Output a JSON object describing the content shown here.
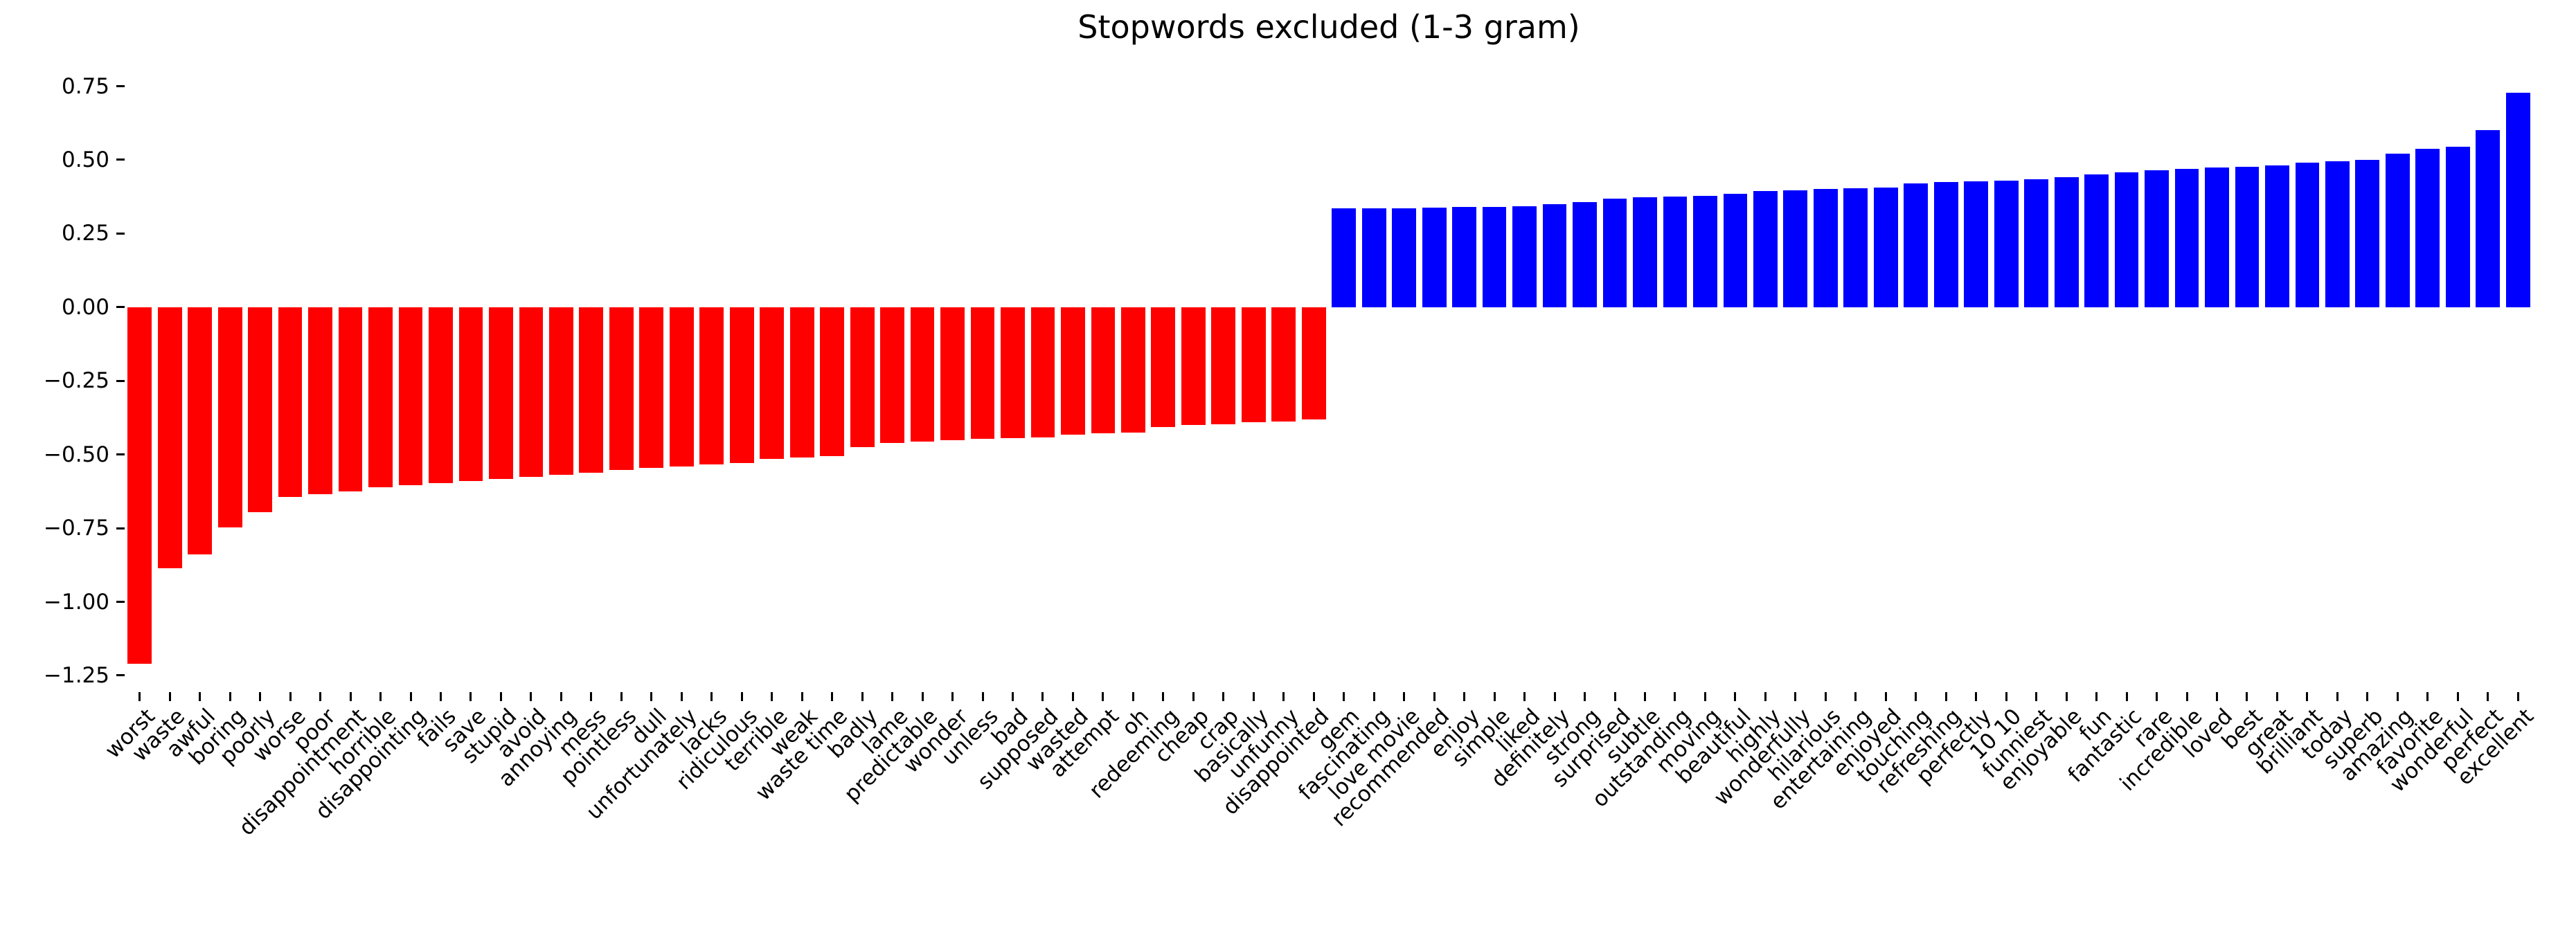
{
  "chart_data": {
    "type": "bar",
    "title": "Stopwords excluded (1-3 gram)",
    "xlabel": "",
    "ylabel": "",
    "ylim": [
      -1.31,
      0.85
    ],
    "grid": false,
    "legend": "none",
    "xlabel_rotation_deg": 45,
    "bar_color_negative": "#ff0000",
    "bar_color_positive": "#0000ff",
    "yticks": [
      {
        "label": "0.75",
        "value": 0.75
      },
      {
        "label": "0.50",
        "value": 0.5
      },
      {
        "label": "0.25",
        "value": 0.25
      },
      {
        "label": "0.00",
        "value": 0.0
      },
      {
        "label": "−0.25",
        "value": -0.25
      },
      {
        "label": "−0.50",
        "value": -0.5
      },
      {
        "label": "−0.75",
        "value": -0.75
      },
      {
        "label": "−1.00",
        "value": -1.0
      },
      {
        "label": "−1.25",
        "value": -1.25
      }
    ],
    "categories": [
      "worst",
      "waste",
      "awful",
      "boring",
      "poorly",
      "worse",
      "poor",
      "disappointment",
      "horrible",
      "disappointing",
      "fails",
      "save",
      "stupid",
      "avoid",
      "annoying",
      "mess",
      "pointless",
      "dull",
      "unfortunately",
      "lacks",
      "ridiculous",
      "terrible",
      "weak",
      "waste time",
      "badly",
      "lame",
      "predictable",
      "wonder",
      "unless",
      "bad",
      "supposed",
      "wasted",
      "attempt",
      "oh",
      "redeeming",
      "cheap",
      "crap",
      "basically",
      "unfunny",
      "disappointed",
      "gem",
      "fascinating",
      "love movie",
      "recommended",
      "enjoy",
      "simple",
      "liked",
      "definitely",
      "strong",
      "surprised",
      "subtle",
      "outstanding",
      "moving",
      "beautiful",
      "highly",
      "wonderfully",
      "hilarious",
      "entertaining",
      "enjoyed",
      "touching",
      "refreshing",
      "perfectly",
      "10 10",
      "funniest",
      "enjoyable",
      "fun",
      "fantastic",
      "rare",
      "incredible",
      "loved",
      "best",
      "great",
      "brilliant",
      "today",
      "superb",
      "amazing",
      "favorite",
      "wonderful",
      "perfect",
      "excellent"
    ],
    "values": [
      -1.21,
      -0.886,
      -0.84,
      -0.748,
      -0.696,
      -0.644,
      -0.635,
      -0.626,
      -0.612,
      -0.604,
      -0.597,
      -0.59,
      -0.583,
      -0.576,
      -0.569,
      -0.562,
      -0.553,
      -0.546,
      -0.54,
      -0.534,
      -0.528,
      -0.515,
      -0.51,
      -0.506,
      -0.475,
      -0.461,
      -0.456,
      -0.451,
      -0.447,
      -0.445,
      -0.443,
      -0.432,
      -0.428,
      -0.425,
      -0.408,
      -0.4,
      -0.398,
      -0.39,
      -0.388,
      -0.381,
      0.335,
      0.335,
      0.336,
      0.338,
      0.34,
      0.34,
      0.343,
      0.35,
      0.356,
      0.368,
      0.372,
      0.375,
      0.378,
      0.385,
      0.395,
      0.397,
      0.401,
      0.404,
      0.406,
      0.42,
      0.424,
      0.427,
      0.43,
      0.434,
      0.441,
      0.45,
      0.458,
      0.464,
      0.469,
      0.474,
      0.477,
      0.481,
      0.49,
      0.496,
      0.501,
      0.52,
      0.538,
      0.545,
      0.6,
      0.728
    ]
  }
}
